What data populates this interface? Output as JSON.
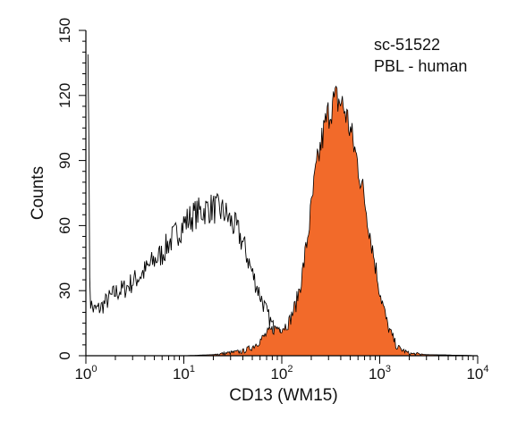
{
  "chart_data": {
    "type": "area",
    "annotations": [
      "sc-51522",
      "PBL - human"
    ],
    "xlabel": "CD13 (WM15)",
    "ylabel": "Counts",
    "x_scale": "log",
    "xlim": [
      1,
      10000
    ],
    "ylim": [
      0,
      150
    ],
    "x_ticks": [
      {
        "value": 1,
        "base": "10",
        "exp": "0"
      },
      {
        "value": 10,
        "base": "10",
        "exp": "1"
      },
      {
        "value": 100,
        "base": "10",
        "exp": "2"
      },
      {
        "value": 1000,
        "base": "10",
        "exp": "3"
      },
      {
        "value": 10000,
        "base": "10",
        "exp": "4"
      }
    ],
    "y_ticks": [
      "0",
      "30",
      "60",
      "90",
      "120",
      "150"
    ],
    "grid": false,
    "colors": {
      "filled": "#f26a2a",
      "outline": "#000000",
      "axis": "#000000"
    },
    "series": [
      {
        "style": "outline",
        "x": [
          1.05,
          1.1,
          1.2,
          1.4,
          1.7,
          2,
          2.5,
          3,
          4,
          5,
          6,
          7,
          8,
          9,
          10,
          12,
          14,
          16,
          18,
          20,
          23,
          26,
          30,
          35,
          40,
          45,
          50,
          60,
          70,
          80,
          90,
          100,
          120,
          150,
          200,
          250,
          300,
          400,
          500,
          700,
          1000,
          1500,
          2000,
          5000,
          10000
        ],
        "values": [
          150,
          25,
          21,
          22,
          26,
          29,
          31,
          34,
          39,
          44,
          47,
          52,
          55,
          58,
          61,
          64,
          66,
          67,
          68,
          68,
          67,
          66,
          62,
          58,
          52,
          45,
          38,
          28,
          20,
          14,
          11,
          9,
          8,
          7,
          6,
          4,
          3,
          2,
          2,
          1,
          1,
          0.5,
          0.5,
          0.3,
          0
        ]
      },
      {
        "style": "filled",
        "x": [
          1,
          10,
          20,
          40,
          50,
          60,
          70,
          80,
          90,
          100,
          110,
          120,
          140,
          160,
          180,
          200,
          220,
          250,
          280,
          300,
          330,
          360,
          400,
          450,
          500,
          550,
          600,
          700,
          800,
          900,
          1000,
          1200,
          1500,
          2000,
          3000,
          10000
        ],
        "values": [
          0,
          0,
          0.5,
          2,
          4,
          7,
          10,
          12,
          13,
          13,
          14,
          16,
          24,
          36,
          52,
          68,
          83,
          97,
          107,
          112,
          116,
          118,
          117,
          112,
          104,
          96,
          88,
          72,
          56,
          42,
          30,
          14,
          4,
          1,
          0.5,
          0
        ]
      }
    ]
  }
}
